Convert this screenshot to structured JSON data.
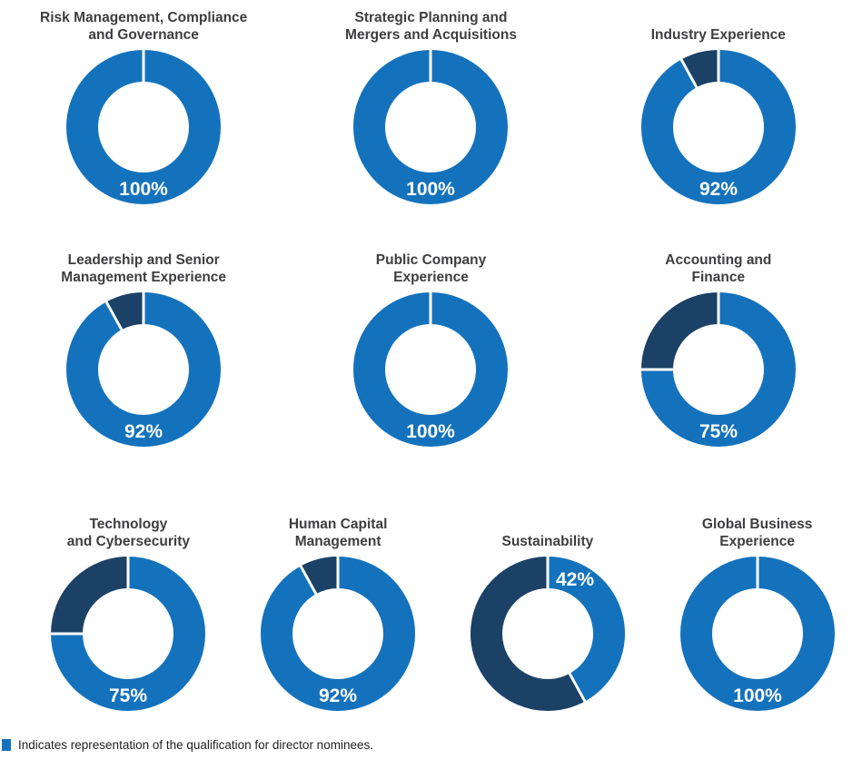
{
  "colors": {
    "primary": "#1472BC",
    "remainder": "#1B4166",
    "divider": "#FFFFFF",
    "percent_label": "#FFFFFF",
    "title_text": "#3E3E40",
    "legend_text": "#1F1F1F"
  },
  "chart_data": [
    {
      "type": "pie",
      "title": "Risk Management, Compliance\nand Governance",
      "value_pct": 100,
      "remainder_pct": 0,
      "label": "100%",
      "label_position": "bottom"
    },
    {
      "type": "pie",
      "title": "Strategic Planning and\nMergers and Acquisitions",
      "value_pct": 100,
      "remainder_pct": 0,
      "label": "100%",
      "label_position": "bottom"
    },
    {
      "type": "pie",
      "title": "Industry Experience",
      "value_pct": 92,
      "remainder_pct": 8,
      "label": "92%",
      "label_position": "bottom"
    },
    {
      "type": "pie",
      "title": "Leadership and Senior\nManagement Experience",
      "value_pct": 92,
      "remainder_pct": 8,
      "label": "92%",
      "label_position": "bottom"
    },
    {
      "type": "pie",
      "title": "Public Company\nExperience",
      "value_pct": 100,
      "remainder_pct": 0,
      "label": "100%",
      "label_position": "bottom"
    },
    {
      "type": "pie",
      "title": "Accounting and\nFinance",
      "value_pct": 75,
      "remainder_pct": 25,
      "label": "75%",
      "label_position": "bottom"
    },
    {
      "type": "pie",
      "title": "Technology\nand Cybersecurity",
      "value_pct": 75,
      "remainder_pct": 25,
      "label": "75%",
      "label_position": "bottom"
    },
    {
      "type": "pie",
      "title": "Human Capital\nManagement",
      "value_pct": 92,
      "remainder_pct": 8,
      "label": "92%",
      "label_position": "bottom"
    },
    {
      "type": "pie",
      "title": "Sustainability",
      "value_pct": 42,
      "remainder_pct": 58,
      "label": "42%",
      "label_position": "top-right"
    },
    {
      "type": "pie",
      "title": "Global Business\nExperience",
      "value_pct": 100,
      "remainder_pct": 0,
      "label": "100%",
      "label_position": "bottom"
    }
  ],
  "legend": {
    "swatch_color": "#1472BC",
    "label": "Indicates representation of the qualification for director nominees."
  }
}
